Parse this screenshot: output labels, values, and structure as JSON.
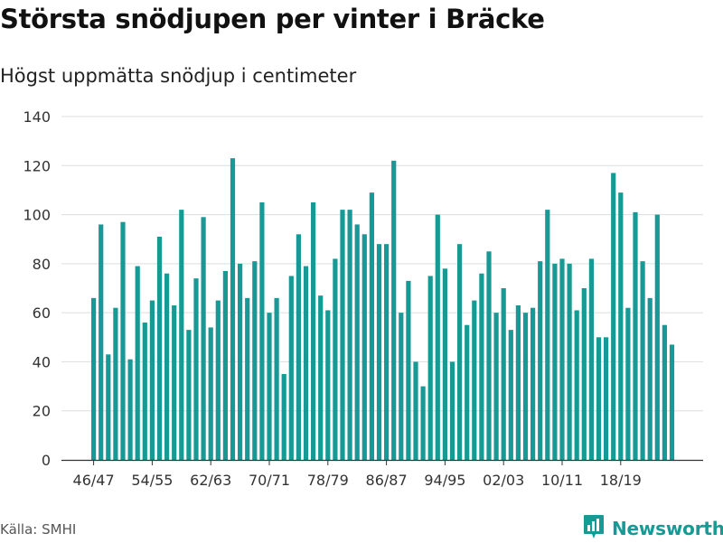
{
  "title": "Största snödjupen per vinter i Bräcke",
  "subtitle": "Högst uppmätta snödjup i centimeter",
  "source": "Källa: SMHI",
  "brand": {
    "name": "Newsworthy",
    "icon": "bar-chart-logo-icon",
    "color": "#179a95"
  },
  "colors": {
    "bar": "#179a95",
    "grid": "#dddddd",
    "axis": "#333333"
  },
  "chart_data": {
    "type": "bar",
    "title": "Största snödjupen per vinter i Bräcke",
    "subtitle": "Högst uppmätta snödjup i centimeter",
    "xlabel": "",
    "ylabel": "",
    "ylim": [
      0,
      140
    ],
    "yticks": [
      0,
      20,
      40,
      60,
      80,
      100,
      120,
      140
    ],
    "grid": true,
    "legend": "none",
    "x_tick_labels": [
      {
        "index": 0,
        "label": "46/47"
      },
      {
        "index": 8,
        "label": "54/55"
      },
      {
        "index": 16,
        "label": "62/63"
      },
      {
        "index": 24,
        "label": "70/71"
      },
      {
        "index": 32,
        "label": "78/79"
      },
      {
        "index": 40,
        "label": "86/87"
      },
      {
        "index": 48,
        "label": "94/95"
      },
      {
        "index": 56,
        "label": "02/03"
      },
      {
        "index": 64,
        "label": "10/11"
      },
      {
        "index": 72,
        "label": "18/19"
      }
    ],
    "values": [
      66,
      96,
      43,
      62,
      97,
      41,
      79,
      56,
      65,
      91,
      76,
      63,
      102,
      53,
      74,
      99,
      54,
      65,
      77,
      123,
      80,
      66,
      81,
      105,
      60,
      66,
      35,
      75,
      92,
      79,
      105,
      67,
      61,
      82,
      102,
      102,
      96,
      92,
      109,
      88,
      88,
      122,
      60,
      73,
      40,
      30,
      75,
      100,
      78,
      40,
      88,
      55,
      65,
      76,
      85,
      60,
      70,
      53,
      63,
      60,
      62,
      81,
      102,
      80,
      82,
      80,
      61,
      70,
      82,
      50,
      50,
      117,
      109,
      62,
      101,
      81,
      66,
      100,
      55,
      47
    ]
  }
}
